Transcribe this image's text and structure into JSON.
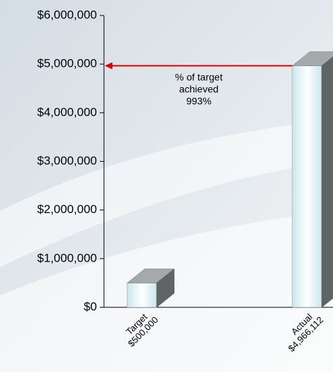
{
  "chart_data": {
    "type": "bar3d",
    "categories": [
      "Target",
      "Actual"
    ],
    "values": [
      500000,
      4966112
    ],
    "value_labels": [
      "$500,000",
      "$4,966,112"
    ],
    "color": "#c9e7ec",
    "annotation": [
      "% of target",
      "achieved",
      "993%"
    ],
    "arrow_color": "#e00000",
    "ylim": [
      0,
      6000000
    ],
    "yticks": [
      {
        "value": 0,
        "label": "$0"
      },
      {
        "value": 1000000,
        "label": "$1,000,000"
      },
      {
        "value": 2000000,
        "label": "$2,000,000"
      },
      {
        "value": 3000000,
        "label": "$3,000,000"
      },
      {
        "value": 4000000,
        "label": "$4,000,000"
      },
      {
        "value": 5000000,
        "label": "$5,000,000"
      },
      {
        "value": 6000000,
        "label": "$6,000,000"
      }
    ]
  }
}
